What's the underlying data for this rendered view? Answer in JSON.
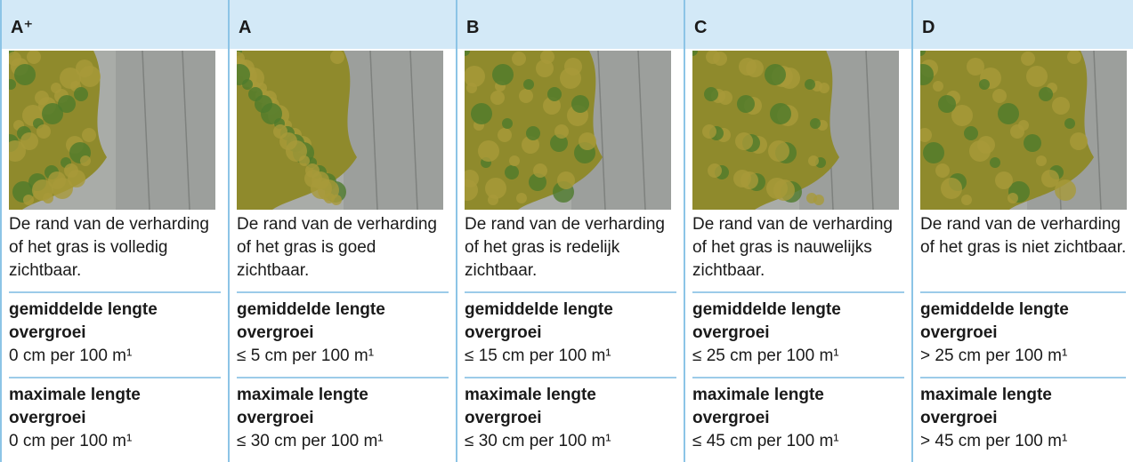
{
  "columns": [
    {
      "grade": "A⁺",
      "description": "De rand van de verharding of het gras is volledig zichtbaar.",
      "average_label": "gemiddelde lengte overgroei",
      "average_value": "0 cm per 100 m¹",
      "maximum_label": "maximale lengte overgroei",
      "maximum_value": "0 cm per 100 m¹"
    },
    {
      "grade": "A",
      "description": "De rand van de verharding of het gras is goed zichtbaar.",
      "average_label": "gemiddelde lengte overgroei",
      "average_value": "≤ 5 cm per 100 m¹",
      "maximum_label": "maximale lengte overgroei",
      "maximum_value": "≤ 30 cm per 100 m¹"
    },
    {
      "grade": "B",
      "description": "De rand van de verharding of het gras is redelijk zichtbaar.",
      "average_label": "gemiddelde lengte overgroei",
      "average_value": "≤ 15 cm per 100 m¹",
      "maximum_label": "maximale lengte overgroei",
      "maximum_value": "≤ 30 cm per 100 m¹"
    },
    {
      "grade": "C",
      "description": "De rand van de verharding of het gras is nauwelijks zichtbaar.",
      "average_label": "gemiddelde lengte overgroei",
      "average_value": "≤ 25 cm per 100 m¹",
      "maximum_label": "maximale lengte overgroei",
      "maximum_value": "≤ 45 cm per 100 m¹"
    },
    {
      "grade": "D",
      "description": "De rand van de verharding of het gras is niet zichtbaar.",
      "average_label": "gemiddelde lengte overgroei",
      "average_value": "> 25 cm per 100 m¹",
      "maximum_label": "maximale lengte overgroei",
      "maximum_value": "> 45 cm per 100 m¹"
    }
  ]
}
